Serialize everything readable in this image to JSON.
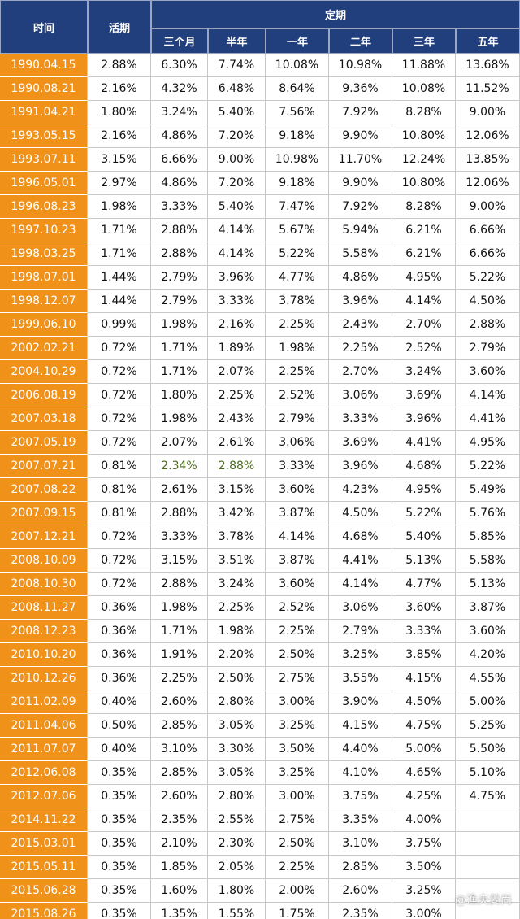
{
  "header": {
    "time": "时间",
    "current": "活期",
    "fixed": "定期",
    "terms": [
      "三个月",
      "半年",
      "一年",
      "二年",
      "三年",
      "五年"
    ]
  },
  "table": {
    "rows": [
      [
        "1990.04.15",
        "2.88%",
        "6.30%",
        "7.74%",
        "10.08%",
        "10.98%",
        "11.88%",
        "13.68%"
      ],
      [
        "1990.08.21",
        "2.16%",
        "4.32%",
        "6.48%",
        "8.64%",
        "9.36%",
        "10.08%",
        "11.52%"
      ],
      [
        "1991.04.21",
        "1.80%",
        "3.24%",
        "5.40%",
        "7.56%",
        "7.92%",
        "8.28%",
        "9.00%"
      ],
      [
        "1993.05.15",
        "2.16%",
        "4.86%",
        "7.20%",
        "9.18%",
        "9.90%",
        "10.80%",
        "12.06%"
      ],
      [
        "1993.07.11",
        "3.15%",
        "6.66%",
        "9.00%",
        "10.98%",
        "11.70%",
        "12.24%",
        "13.85%"
      ],
      [
        "1996.05.01",
        "2.97%",
        "4.86%",
        "7.20%",
        "9.18%",
        "9.90%",
        "10.80%",
        "12.06%"
      ],
      [
        "1996.08.23",
        "1.98%",
        "3.33%",
        "5.40%",
        "7.47%",
        "7.92%",
        "8.28%",
        "9.00%"
      ],
      [
        "1997.10.23",
        "1.71%",
        "2.88%",
        "4.14%",
        "5.67%",
        "5.94%",
        "6.21%",
        "6.66%"
      ],
      [
        "1998.03.25",
        "1.71%",
        "2.88%",
        "4.14%",
        "5.22%",
        "5.58%",
        "6.21%",
        "6.66%"
      ],
      [
        "1998.07.01",
        "1.44%",
        "2.79%",
        "3.96%",
        "4.77%",
        "4.86%",
        "4.95%",
        "5.22%"
      ],
      [
        "1998.12.07",
        "1.44%",
        "2.79%",
        "3.33%",
        "3.78%",
        "3.96%",
        "4.14%",
        "4.50%"
      ],
      [
        "1999.06.10",
        "0.99%",
        "1.98%",
        "2.16%",
        "2.25%",
        "2.43%",
        "2.70%",
        "2.88%"
      ],
      [
        "2002.02.21",
        "0.72%",
        "1.71%",
        "1.89%",
        "1.98%",
        "2.25%",
        "2.52%",
        "2.79%"
      ],
      [
        "2004.10.29",
        "0.72%",
        "1.71%",
        "2.07%",
        "2.25%",
        "2.70%",
        "3.24%",
        "3.60%"
      ],
      [
        "2006.08.19",
        "0.72%",
        "1.80%",
        "2.25%",
        "2.52%",
        "3.06%",
        "3.69%",
        "4.14%"
      ],
      [
        "2007.03.18",
        "0.72%",
        "1.98%",
        "2.43%",
        "2.79%",
        "3.33%",
        "3.96%",
        "4.41%"
      ],
      [
        "2007.05.19",
        "0.72%",
        "2.07%",
        "2.61%",
        "3.06%",
        "3.69%",
        "4.41%",
        "4.95%"
      ],
      [
        "2007.07.21",
        "0.81%",
        "2.34%",
        "2.88%",
        "3.33%",
        "3.96%",
        "4.68%",
        "5.22%"
      ],
      [
        "2007.08.22",
        "0.81%",
        "2.61%",
        "3.15%",
        "3.60%",
        "4.23%",
        "4.95%",
        "5.49%"
      ],
      [
        "2007.09.15",
        "0.81%",
        "2.88%",
        "3.42%",
        "3.87%",
        "4.50%",
        "5.22%",
        "5.76%"
      ],
      [
        "2007.12.21",
        "0.72%",
        "3.33%",
        "3.78%",
        "4.14%",
        "4.68%",
        "5.40%",
        "5.85%"
      ],
      [
        "2008.10.09",
        "0.72%",
        "3.15%",
        "3.51%",
        "3.87%",
        "4.41%",
        "5.13%",
        "5.58%"
      ],
      [
        "2008.10.30",
        "0.72%",
        "2.88%",
        "3.24%",
        "3.60%",
        "4.14%",
        "4.77%",
        "5.13%"
      ],
      [
        "2008.11.27",
        "0.36%",
        "1.98%",
        "2.25%",
        "2.52%",
        "3.06%",
        "3.60%",
        "3.87%"
      ],
      [
        "2008.12.23",
        "0.36%",
        "1.71%",
        "1.98%",
        "2.25%",
        "2.79%",
        "3.33%",
        "3.60%"
      ],
      [
        "2010.10.20",
        "0.36%",
        "1.91%",
        "2.20%",
        "2.50%",
        "3.25%",
        "3.85%",
        "4.20%"
      ],
      [
        "2010.12.26",
        "0.36%",
        "2.25%",
        "2.50%",
        "2.75%",
        "3.55%",
        "4.15%",
        "4.55%"
      ],
      [
        "2011.02.09",
        "0.40%",
        "2.60%",
        "2.80%",
        "3.00%",
        "3.90%",
        "4.50%",
        "5.00%"
      ],
      [
        "2011.04.06",
        "0.50%",
        "2.85%",
        "3.05%",
        "3.25%",
        "4.15%",
        "4.75%",
        "5.25%"
      ],
      [
        "2011.07.07",
        "0.40%",
        "3.10%",
        "3.30%",
        "3.50%",
        "4.40%",
        "5.00%",
        "5.50%"
      ],
      [
        "2012.06.08",
        "0.35%",
        "2.85%",
        "3.05%",
        "3.25%",
        "4.10%",
        "4.65%",
        "5.10%"
      ],
      [
        "2012.07.06",
        "0.35%",
        "2.60%",
        "2.80%",
        "3.00%",
        "3.75%",
        "4.25%",
        "4.75%"
      ],
      [
        "2014.11.22",
        "0.35%",
        "2.35%",
        "2.55%",
        "2.75%",
        "3.35%",
        "4.00%",
        null
      ],
      [
        "2015.03.01",
        "0.35%",
        "2.10%",
        "2.30%",
        "2.50%",
        "3.10%",
        "3.75%",
        null
      ],
      [
        "2015.05.11",
        "0.35%",
        "1.85%",
        "2.05%",
        "2.25%",
        "2.85%",
        "3.50%",
        null
      ],
      [
        "2015.06.28",
        "0.35%",
        "1.60%",
        "1.80%",
        "2.00%",
        "2.60%",
        "3.25%",
        null
      ],
      [
        "2015.08.26",
        "0.35%",
        "1.35%",
        "1.55%",
        "1.75%",
        "2.35%",
        "3.00%",
        null
      ]
    ],
    "green_cells": [
      [
        17,
        2
      ],
      [
        17,
        3
      ]
    ]
  },
  "watermark": "@渔夫姜尚"
}
